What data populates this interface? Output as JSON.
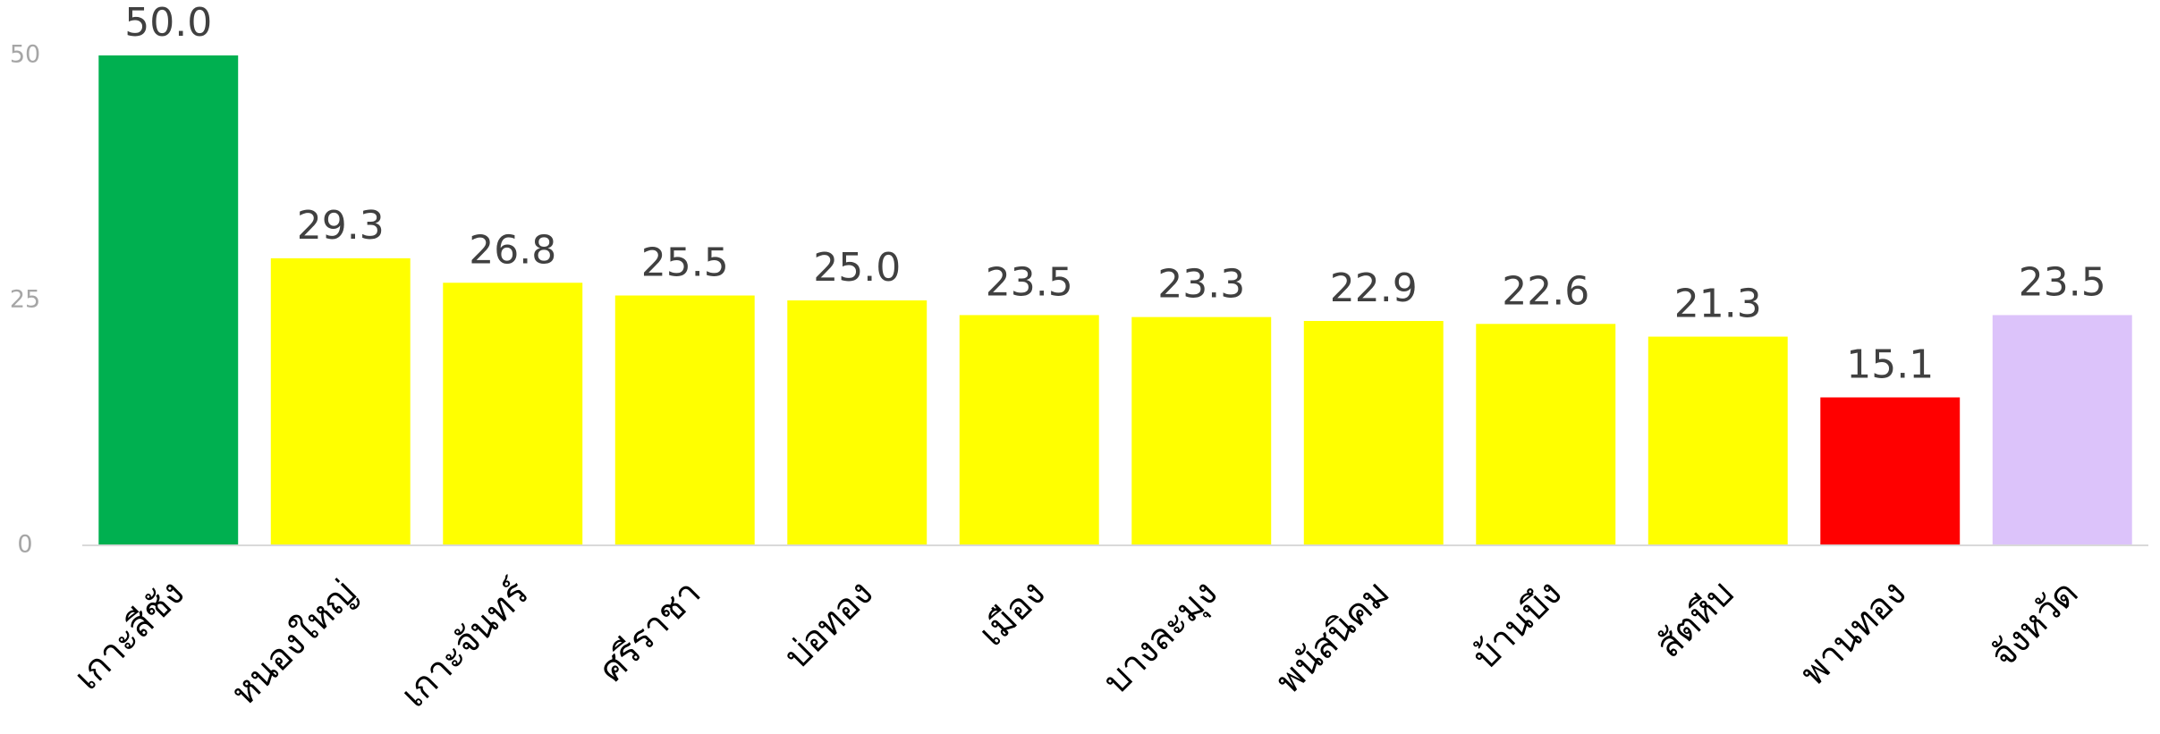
{
  "chart_data": {
    "type": "bar",
    "categories": [
      "เกาะสีชัง",
      "หนองใหญ่",
      "เกาะจันทร์",
      "ศรีราชา",
      "บ่อทอง",
      "เมือง",
      "บางละมุง",
      "พนัสนิคม",
      "บ้านบึง",
      "สัตหีบ",
      "พานทอง",
      "จังหวัด"
    ],
    "values": [
      50,
      29.3,
      26.8,
      25.5,
      25,
      23.5,
      23.3,
      22.9,
      22.6,
      21.3,
      15.1,
      23.5
    ],
    "value_labels": [
      "50.0",
      "29.3",
      "26.8",
      "25.5",
      "25.0",
      "23.5",
      "23.3",
      "22.9",
      "22.6",
      "21.3",
      "15.1",
      "23.5"
    ],
    "colors": [
      "#00b050",
      "#ffff00",
      "#ffff00",
      "#ffff00",
      "#ffff00",
      "#ffff00",
      "#ffff00",
      "#ffff00",
      "#ffff00",
      "#ffff00",
      "#ff0000",
      "#dcc3fa"
    ],
    "ylim": [
      0,
      50
    ],
    "yticks": [
      0,
      25,
      50
    ],
    "grid": false
  }
}
